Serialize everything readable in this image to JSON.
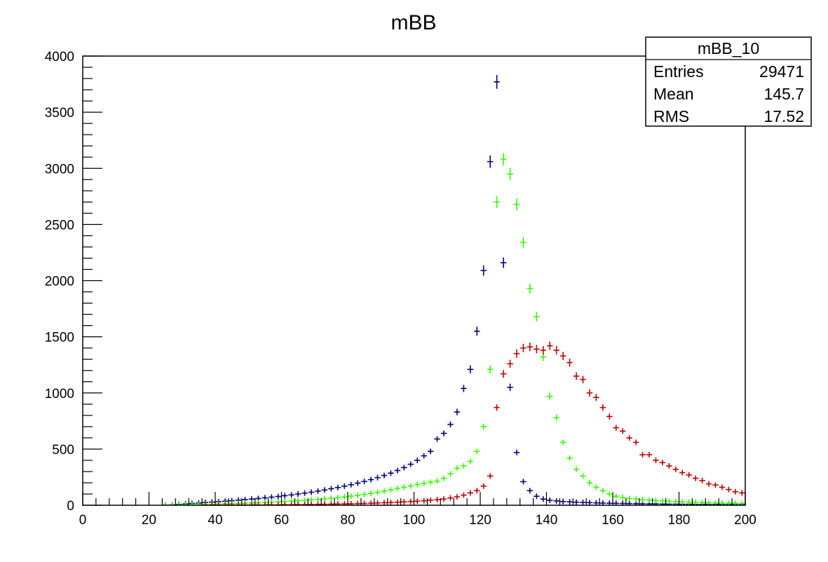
{
  "chart_data": {
    "type": "scatter",
    "title": "mBB",
    "xlabel": "",
    "ylabel": "",
    "xlim": [
      0,
      200
    ],
    "ylim": [
      0,
      4000
    ],
    "grid": false,
    "bin_width": 2,
    "x_ticks": [
      0,
      20,
      40,
      60,
      80,
      100,
      120,
      140,
      160,
      180,
      200
    ],
    "y_ticks": [
      0,
      500,
      1000,
      1500,
      2000,
      2500,
      3000,
      3500,
      4000
    ],
    "stats_box": {
      "name": "mBB_10",
      "rows": [
        {
          "label": "Entries",
          "value": "29471"
        },
        {
          "label": "Mean",
          "value": "145.7"
        },
        {
          "label": "RMS",
          "value": "17.52"
        }
      ]
    },
    "series": [
      {
        "color": "#00007f",
        "x": [
          25,
          27,
          29,
          31,
          33,
          35,
          37,
          39,
          41,
          43,
          45,
          47,
          49,
          51,
          53,
          55,
          57,
          59,
          61,
          63,
          65,
          67,
          69,
          71,
          73,
          75,
          77,
          79,
          81,
          83,
          85,
          87,
          89,
          91,
          93,
          95,
          97,
          99,
          101,
          103,
          105,
          107,
          109,
          111,
          113,
          115,
          117,
          119,
          121,
          123,
          125,
          127,
          129,
          131,
          133,
          135,
          137,
          139,
          141,
          143,
          145,
          147,
          149,
          151,
          153,
          155,
          157,
          159,
          161,
          163,
          165,
          167,
          169,
          171,
          173,
          175,
          177,
          179,
          181,
          183,
          185,
          187,
          189,
          191,
          193,
          195,
          197,
          199
        ],
        "y": [
          2,
          4,
          8,
          12,
          16,
          20,
          24,
          28,
          32,
          36,
          40,
          45,
          50,
          55,
          60,
          66,
          72,
          78,
          85,
          92,
          100,
          108,
          116,
          126,
          136,
          147,
          158,
          170,
          183,
          197,
          212,
          228,
          246,
          265,
          286,
          309,
          335,
          365,
          400,
          440,
          480,
          590,
          640,
          720,
          830,
          1040,
          1210,
          1550,
          2090,
          3060,
          3770,
          2160,
          1050,
          470,
          210,
          130,
          80,
          55,
          45,
          38,
          33,
          30,
          27,
          25,
          23,
          21,
          19,
          18,
          17,
          16,
          15,
          14,
          13,
          12,
          12,
          11,
          10,
          10,
          9,
          9,
          8,
          8,
          7,
          7,
          6,
          6,
          5,
          5
        ]
      },
      {
        "color": "#33ff00",
        "x": [
          25,
          27,
          29,
          31,
          33,
          35,
          37,
          39,
          41,
          43,
          45,
          47,
          49,
          51,
          53,
          55,
          57,
          59,
          61,
          63,
          65,
          67,
          69,
          71,
          73,
          75,
          77,
          79,
          81,
          83,
          85,
          87,
          89,
          91,
          93,
          95,
          97,
          99,
          101,
          103,
          105,
          107,
          109,
          111,
          113,
          115,
          117,
          119,
          121,
          123,
          125,
          127,
          129,
          131,
          133,
          135,
          137,
          139,
          141,
          143,
          145,
          147,
          149,
          151,
          153,
          155,
          157,
          159,
          161,
          163,
          165,
          167,
          169,
          171,
          173,
          175,
          177,
          179,
          181,
          183,
          185,
          187,
          189,
          191,
          193,
          195,
          197,
          199
        ],
        "y": [
          1,
          2,
          3,
          4,
          5,
          6,
          7,
          8,
          10,
          12,
          14,
          16,
          18,
          20,
          22,
          25,
          28,
          31,
          34,
          37,
          40,
          44,
          48,
          52,
          57,
          62,
          68,
          74,
          81,
          88,
          96,
          105,
          115,
          126,
          138,
          150,
          160,
          172,
          185,
          195,
          205,
          215,
          240,
          280,
          330,
          350,
          390,
          480,
          700,
          1210,
          2700,
          3080,
          2950,
          2680,
          2340,
          1930,
          1680,
          1320,
          970,
          780,
          560,
          420,
          320,
          260,
          200,
          160,
          130,
          100,
          80,
          70,
          60,
          55,
          50,
          46,
          42,
          38,
          35,
          32,
          30,
          28,
          26,
          24,
          22,
          20,
          19,
          18,
          17,
          16
        ]
      },
      {
        "color": "#bf0000",
        "x": [
          25,
          27,
          29,
          31,
          33,
          35,
          37,
          39,
          41,
          43,
          45,
          47,
          49,
          51,
          53,
          55,
          57,
          59,
          61,
          63,
          65,
          67,
          69,
          71,
          73,
          75,
          77,
          79,
          81,
          83,
          85,
          87,
          89,
          91,
          93,
          95,
          97,
          99,
          101,
          103,
          105,
          107,
          109,
          111,
          113,
          115,
          117,
          119,
          121,
          123,
          125,
          127,
          129,
          131,
          133,
          135,
          137,
          139,
          141,
          143,
          145,
          147,
          149,
          151,
          153,
          155,
          157,
          159,
          161,
          163,
          165,
          167,
          169,
          171,
          173,
          175,
          177,
          179,
          181,
          183,
          185,
          187,
          189,
          191,
          193,
          195,
          197,
          199
        ],
        "y": [
          0,
          0,
          0,
          0,
          0,
          0,
          1,
          1,
          1,
          1,
          2,
          2,
          2,
          3,
          3,
          3,
          4,
          4,
          5,
          5,
          6,
          6,
          7,
          8,
          9,
          10,
          11,
          12,
          13,
          15,
          16,
          18,
          20,
          22,
          24,
          27,
          30,
          33,
          36,
          40,
          45,
          50,
          55,
          65,
          75,
          90,
          110,
          130,
          170,
          260,
          870,
          1170,
          1260,
          1350,
          1400,
          1410,
          1390,
          1380,
          1420,
          1380,
          1330,
          1270,
          1150,
          1120,
          1000,
          960,
          870,
          790,
          690,
          660,
          600,
          560,
          450,
          450,
          400,
          380,
          350,
          320,
          290,
          270,
          240,
          220,
          190,
          180,
          160,
          140,
          120,
          110
        ]
      }
    ]
  }
}
